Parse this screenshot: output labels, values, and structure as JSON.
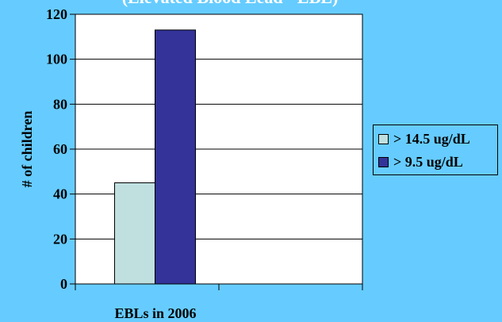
{
  "chart_data": {
    "type": "bar",
    "title": "(Elevated Blood Lead - EBL)",
    "categories": [
      "EBLs in 2006"
    ],
    "series": [
      {
        "name": "> 14.5 ug/dL",
        "values": [
          45
        ],
        "color": "#c0e0e0"
      },
      {
        "name": "> 9.5 ug/dL",
        "values": [
          113
        ],
        "color": "#333399"
      }
    ],
    "xlabel": "EBLs in 2006",
    "ylabel": "# of children",
    "ylim": [
      0,
      120
    ],
    "yticks": [
      0,
      20,
      40,
      60,
      80,
      100,
      120
    ],
    "grid": true,
    "legend": "right"
  },
  "colors": {
    "background": "#66ccff",
    "plot_area": "#ffffff",
    "title": "#ffffff"
  }
}
